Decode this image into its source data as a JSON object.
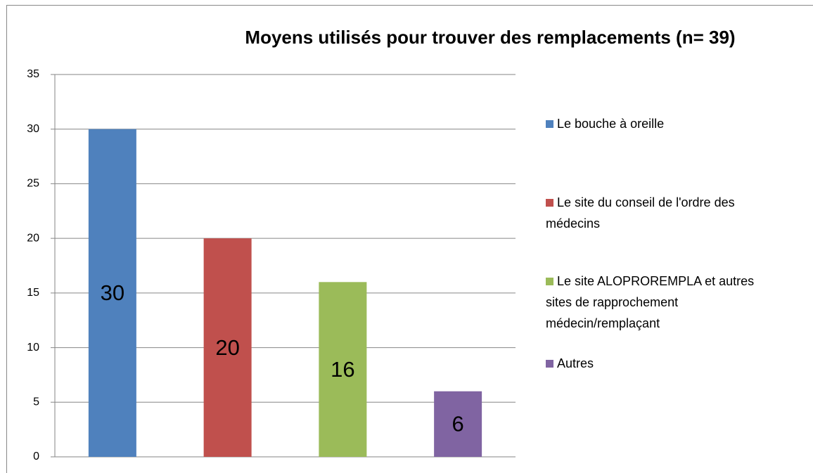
{
  "chart_data": {
    "type": "bar",
    "title": "Moyens utilisés pour trouver des remplacements (n= 39)",
    "categories": [
      null
    ],
    "series": [
      {
        "name": "Le bouche à oreille",
        "color": "#4f81bd",
        "values": [
          30
        ]
      },
      {
        "name": "Le site du conseil de l'ordre des médecins",
        "color": "#c0504d",
        "values": [
          20
        ]
      },
      {
        "name": "Le site ALOPROREMPLA et autres sites de rapprochement médecin/remplaçant",
        "color": "#9bbb59",
        "values": [
          16
        ]
      },
      {
        "name": "Autres",
        "color": "#8064a2",
        "values": [
          6
        ]
      }
    ],
    "ylim": [
      0,
      35
    ],
    "yticks": [
      0,
      5,
      10,
      15,
      20,
      25,
      30,
      35
    ],
    "grid": true,
    "legend": "right"
  }
}
